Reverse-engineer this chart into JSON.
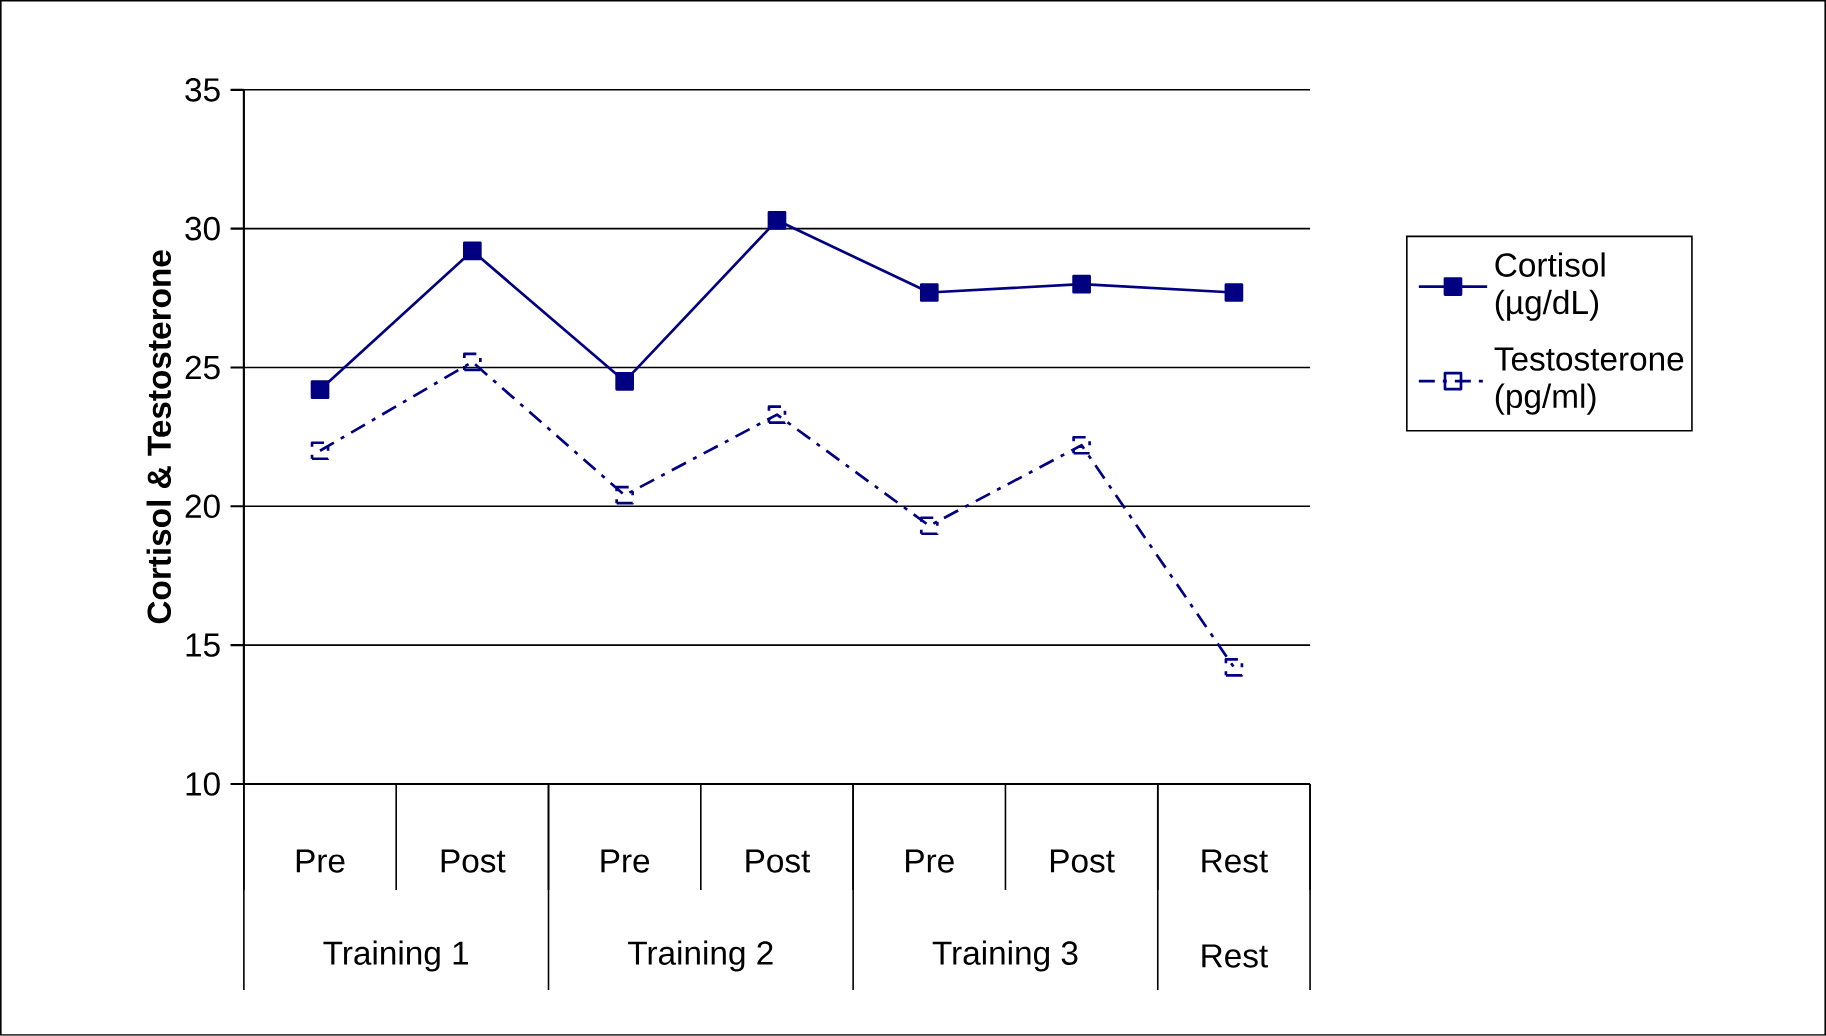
{
  "chart_data": {
    "type": "line",
    "ylabel": "Cortisol & Testosterone",
    "categories": [
      "Pre",
      "Post",
      "Pre",
      "Post",
      "Pre",
      "Post",
      "Rest"
    ],
    "series": [
      {
        "name": "Cortisol (µg/dL)",
        "color": "#000080",
        "marker": "square",
        "line_style": "solid",
        "values": [
          24.2,
          29.2,
          24.5,
          30.3,
          27.7,
          28.0,
          27.7
        ]
      },
      {
        "name": "Testosterone (pg/ml)",
        "color": "#000080",
        "marker": "square-open",
        "line_style": "dashdot",
        "values": [
          22.0,
          25.2,
          20.4,
          23.3,
          19.3,
          22.2,
          14.2
        ]
      }
    ],
    "ylim": [
      10,
      35
    ],
    "yticks": [
      10,
      15,
      20,
      25,
      30,
      35
    ],
    "grid": "y",
    "legend": "right",
    "annotations": [
      "Training 1",
      "Training 2",
      "Training 3",
      "Rest"
    ]
  }
}
